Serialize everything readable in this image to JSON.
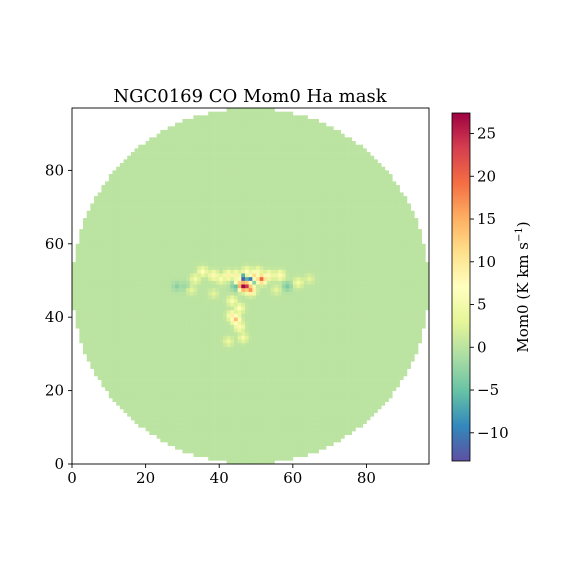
{
  "chart_data": {
    "type": "heatmap",
    "title": "NGC0169 CO Mom0 Ha mask",
    "xlabel": "",
    "ylabel": "",
    "xlim": [
      0,
      97
    ],
    "ylim": [
      0,
      97
    ],
    "xticks": [
      0,
      20,
      40,
      60,
      80
    ],
    "yticks": [
      0,
      20,
      40,
      60,
      80
    ],
    "grid": false,
    "colormap": "Spectral_r",
    "colorbar": {
      "label": "Mom0 (K km s$^{-1}$)",
      "label_text": "Mom0 (K km s",
      "label_sup": "−1",
      "label_close": ")",
      "range": [
        -13.3,
        27.4
      ],
      "ticks": [
        -10,
        -5,
        0,
        5,
        10,
        15,
        20,
        25
      ],
      "tick_labels": [
        "−10",
        "−5",
        "0",
        "5",
        "10",
        "15",
        "20",
        "25"
      ]
    },
    "grid_size": 97,
    "center": [
      48.5,
      48.5
    ],
    "mask_radius": 48.5,
    "background_value": 0.0,
    "features": [
      {
        "x": 46,
        "y": 48,
        "value": 27
      },
      {
        "x": 47,
        "y": 48,
        "value": 24
      },
      {
        "x": 51,
        "y": 50,
        "value": 20
      },
      {
        "x": 48,
        "y": 47,
        "value": 17
      },
      {
        "x": 44,
        "y": 39,
        "value": 14
      },
      {
        "x": 45,
        "y": 49,
        "value": 12
      },
      {
        "x": 49,
        "y": 51,
        "value": 11
      },
      {
        "x": 42,
        "y": 51,
        "value": 9
      },
      {
        "x": 44,
        "y": 51,
        "value": 9
      },
      {
        "x": 53,
        "y": 51,
        "value": 8
      },
      {
        "x": 56,
        "y": 51,
        "value": 8
      },
      {
        "x": 38,
        "y": 51,
        "value": 8
      },
      {
        "x": 35,
        "y": 52,
        "value": 7
      },
      {
        "x": 45,
        "y": 42,
        "value": 7
      },
      {
        "x": 43,
        "y": 40,
        "value": 9
      },
      {
        "x": 45,
        "y": 37,
        "value": 8
      },
      {
        "x": 46,
        "y": 50,
        "value": -12
      },
      {
        "x": 48,
        "y": 50,
        "value": -10
      },
      {
        "x": 44,
        "y": 48,
        "value": -5
      },
      {
        "x": 30,
        "y": 48,
        "value": -2
      },
      {
        "x": 28,
        "y": 48,
        "value": -3
      },
      {
        "x": 58,
        "y": 48,
        "value": -4
      },
      {
        "x": 61,
        "y": 49,
        "value": 5
      },
      {
        "x": 40,
        "y": 50,
        "value": 6
      },
      {
        "x": 33,
        "y": 50,
        "value": 5
      },
      {
        "x": 50,
        "y": 52,
        "value": 6
      },
      {
        "x": 47,
        "y": 52,
        "value": 7
      },
      {
        "x": 42,
        "y": 33,
        "value": 4
      },
      {
        "x": 46,
        "y": 34,
        "value": 5
      },
      {
        "x": 43,
        "y": 44,
        "value": 6
      },
      {
        "x": 64,
        "y": 50,
        "value": 3
      },
      {
        "x": 32,
        "y": 47,
        "value": 3
      },
      {
        "x": 38,
        "y": 46,
        "value": 3
      },
      {
        "x": 55,
        "y": 47,
        "value": 3
      }
    ]
  }
}
